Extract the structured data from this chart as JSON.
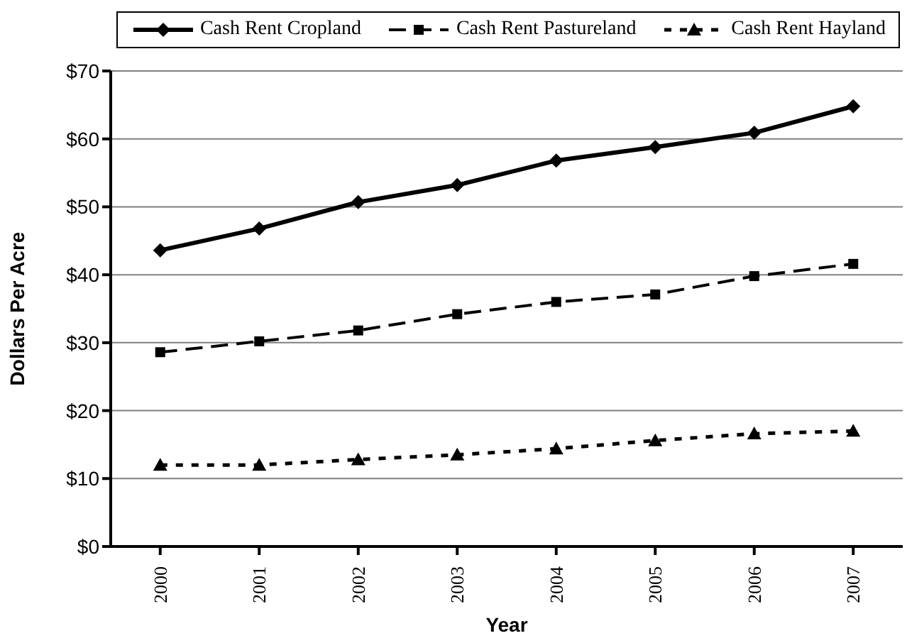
{
  "chart_data": {
    "type": "line",
    "xlabel": "Year",
    "ylabel": "Dollars Per Acre",
    "categories": [
      "2000",
      "2001",
      "2002",
      "2003",
      "2004",
      "2005",
      "2006",
      "2007"
    ],
    "series": [
      {
        "name": "Cash Rent Cropland",
        "color": "#000000",
        "line_style": "solid",
        "marker": "diamond",
        "values": [
          43.6,
          46.8,
          50.7,
          53.2,
          56.8,
          58.8,
          60.9,
          64.8
        ]
      },
      {
        "name": "Cash Rent Pastureland",
        "color": "#000000",
        "line_style": "dashed",
        "marker": "square",
        "values": [
          28.6,
          30.2,
          31.8,
          34.2,
          36.0,
          37.1,
          39.8,
          41.6
        ]
      },
      {
        "name": "Cash Rent Hayland",
        "color": "#000000",
        "line_style": "dotted",
        "marker": "triangle",
        "values": [
          12.0,
          12.0,
          12.8,
          13.5,
          14.4,
          15.6,
          16.6,
          17.0
        ]
      }
    ],
    "ylim": [
      0,
      70
    ],
    "yticks": [
      {
        "value": 0,
        "label": "$0"
      },
      {
        "value": 10,
        "label": "$10"
      },
      {
        "value": 20,
        "label": "$20"
      },
      {
        "value": 30,
        "label": "$30"
      },
      {
        "value": 40,
        "label": "$40"
      },
      {
        "value": 50,
        "label": "$50"
      },
      {
        "value": 60,
        "label": "$60"
      },
      {
        "value": 70,
        "label": "$70"
      }
    ],
    "grid": "y",
    "legend": "top"
  }
}
